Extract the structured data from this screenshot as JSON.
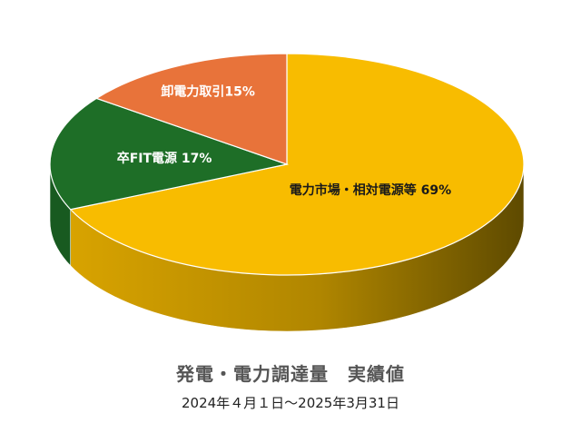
{
  "chart_data": {
    "type": "pie",
    "title": "発電・電力調達量　実績値",
    "subtitle": "2024年４月１日～2025年3月31日",
    "slices": [
      {
        "label": "電力市場・相対電源等",
        "percent_label": "69%",
        "value": 69,
        "color": "#F8BC00",
        "side_light": "#D8A300",
        "side_dark": "#5E4A00",
        "text_color": "#1a1a1a"
      },
      {
        "label": "卒FIT電源",
        "percent_label": "17%",
        "value": 17,
        "color": "#1E6E27",
        "side_light": "#185A20",
        "side_dark": "#0F3A14",
        "text_color": "#ffffff"
      },
      {
        "label": "卸電力取引",
        "percent_label": "15%",
        "value": 15,
        "color": "#E8733A",
        "side_light": "#C85F2C",
        "side_dark": "#7A3A1A",
        "text_color": "#ffffff"
      }
    ],
    "three_d": true
  }
}
